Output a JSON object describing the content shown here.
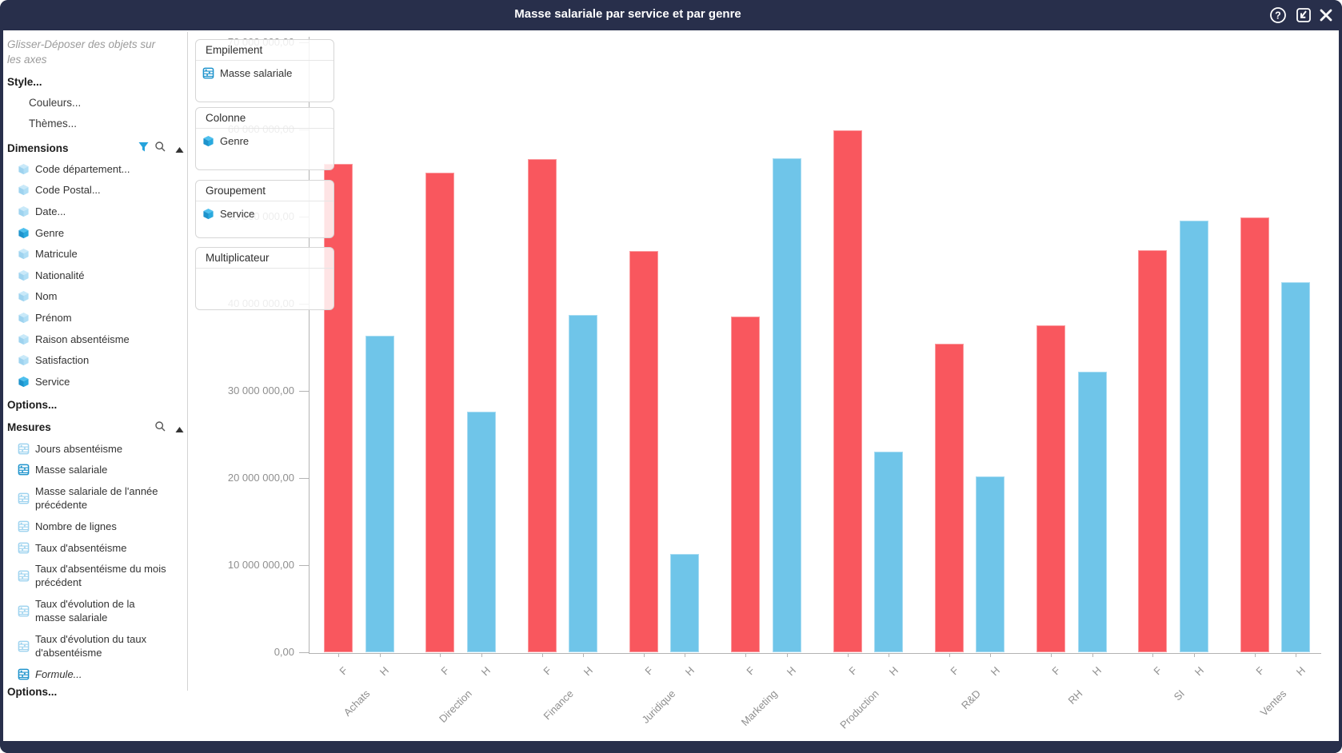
{
  "window": {
    "title": "Masse salariale par service et par genre",
    "icons": [
      {
        "name": "help-icon",
        "glyph": "?"
      },
      {
        "name": "save-icon",
        "glyph": "save"
      },
      {
        "name": "close-icon",
        "glyph": "x"
      }
    ],
    "titlebar_color": "#282F4B"
  },
  "sidebar": {
    "hint": "Glisser-Déposer des objets sur les axes",
    "style_label": "Style...",
    "style_children": [
      "Couleurs...",
      "Thèmes..."
    ],
    "dimensions": {
      "label": "Dimensions",
      "header_icons": [
        "filter-icon",
        "search-icon",
        "collapse-icon"
      ],
      "items": [
        {
          "label": "Code département...",
          "active": false
        },
        {
          "label": "Code Postal...",
          "active": false
        },
        {
          "label": "Date...",
          "active": false
        },
        {
          "label": "Genre",
          "active": true
        },
        {
          "label": "Matricule",
          "active": false
        },
        {
          "label": "Nationalité",
          "active": false
        },
        {
          "label": "Nom",
          "active": false
        },
        {
          "label": "Prénom",
          "active": false
        },
        {
          "label": "Raison absentéisme",
          "active": false
        },
        {
          "label": "Satisfaction",
          "active": false
        },
        {
          "label": "Service",
          "active": true
        }
      ],
      "options_label": "Options..."
    },
    "mesures": {
      "label": "Mesures",
      "header_icons": [
        "search-icon",
        "collapse-icon"
      ],
      "items": [
        {
          "label": "Jours absentéisme",
          "active": false,
          "lines": 1
        },
        {
          "label": "Masse salariale",
          "active": true,
          "lines": 1
        },
        {
          "label": "Masse salariale de l'année précédente",
          "active": false,
          "lines": 2
        },
        {
          "label": "Nombre de lignes",
          "active": false,
          "lines": 1
        },
        {
          "label": "Taux d'absentéisme",
          "active": false,
          "lines": 1
        },
        {
          "label": "Taux d'absentéisme du mois précédent",
          "active": false,
          "lines": 2
        },
        {
          "label": "Taux d'évolution de la masse salariale",
          "active": false,
          "lines": 2
        },
        {
          "label": "Taux d'évolution du taux d'absentéisme",
          "active": false,
          "lines": 2
        },
        {
          "label": "Formule...",
          "active": true,
          "lines": 1,
          "italic": true
        }
      ],
      "options_label": "Options..."
    }
  },
  "dropzones": [
    {
      "title": "Empilement",
      "items": [
        {
          "label": "Masse salariale",
          "icon": "measure-icon"
        }
      ]
    },
    {
      "title": "Colonne",
      "items": [
        {
          "label": "Genre",
          "icon": "dimension-cube-icon"
        }
      ]
    },
    {
      "title": "Groupement",
      "items": [
        {
          "label": "Service",
          "icon": "dimension-cube-icon"
        }
      ]
    },
    {
      "title": "Multiplicateur",
      "items": []
    }
  ],
  "chart_data": {
    "type": "bar",
    "title": "Masse salariale par service et par genre",
    "categories": [
      "Achats",
      "Direction",
      "Finance",
      "Juridique",
      "Marketing",
      "Production",
      "R&D",
      "RH",
      "SI",
      "Ventes"
    ],
    "series": [
      {
        "name": "F",
        "color": "#F9575E",
        "values": [
          56100000,
          55100000,
          56700000,
          46100000,
          38600000,
          60000000,
          35500000,
          37600000,
          46200000,
          50000000
        ]
      },
      {
        "name": "H",
        "color": "#6FC5E9",
        "values": [
          36400000,
          27700000,
          38800000,
          11300000,
          56800000,
          23100000,
          20200000,
          32300000,
          49600000,
          42500000
        ]
      }
    ],
    "xlabel": "",
    "ylabel": "",
    "ylim": [
      0,
      70000000
    ],
    "ytick_step": 10000000,
    "ytick_labels": [
      "0,00",
      "10 000 000,00",
      "20 000 000,00",
      "30 000 000,00",
      "40 000 000,00",
      "50 000 000,00",
      "60 000 000,00",
      "70 000 000,00"
    ],
    "grid": false,
    "legend_position": "none",
    "bar_colors": {
      "F": "#F9575E",
      "H": "#6FC5E9"
    }
  },
  "colors": {
    "navy": "#282F4B",
    "bar_f": "#F9575E",
    "bar_h": "#6FC5E9",
    "icon_active": "#25A3DC",
    "icon_inactive": "#A5D7F1",
    "axis_text": "#8f8f8f"
  }
}
